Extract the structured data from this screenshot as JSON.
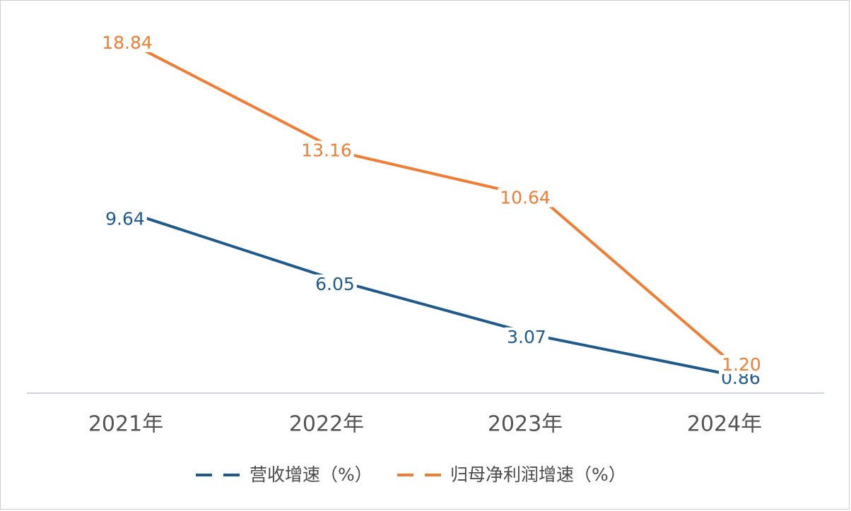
{
  "chart_data": {
    "type": "line",
    "categories": [
      "2021年",
      "2022年",
      "2023年",
      "2024年"
    ],
    "series": [
      {
        "name": "营收增速（%）",
        "values": [
          9.64,
          6.05,
          3.07,
          0.86
        ],
        "labels": [
          "9.64",
          "6.05",
          "3.07",
          "0.86"
        ],
        "color": "#1f5a8c"
      },
      {
        "name": "归母净利润增速（%）",
        "values": [
          18.84,
          13.16,
          10.64,
          1.2
        ],
        "labels": [
          "18.84",
          "13.16",
          "10.64",
          "1.20"
        ],
        "color": "#ef7d33"
      }
    ],
    "ylim": [
      0,
      20
    ],
    "grid": false,
    "legend_position": "bottom"
  },
  "colors": {
    "axis": "#b8c6d8",
    "tick_text": "#545454",
    "border": "#cfcfcf"
  }
}
